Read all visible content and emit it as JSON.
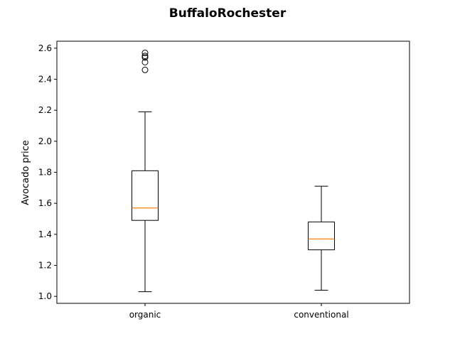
{
  "chart_data": {
    "type": "box",
    "title": "BuffaloRochester",
    "xlabel": "",
    "ylabel": "Avocado price",
    "ylim": [
      0.955,
      2.645
    ],
    "yticks": [
      "1.0",
      "1.2",
      "1.4",
      "1.6",
      "1.8",
      "2.0",
      "2.2",
      "2.4",
      "2.6"
    ],
    "grid": false,
    "legend": "none",
    "categories": [
      "organic",
      "conventional"
    ],
    "boxes": [
      {
        "category": "organic",
        "whisker_low": 1.03,
        "q1": 1.49,
        "median": 1.57,
        "q3": 1.81,
        "whisker_high": 2.19,
        "outliers": [
          2.46,
          2.51,
          2.54,
          2.55,
          2.57
        ]
      },
      {
        "category": "conventional",
        "whisker_low": 1.04,
        "q1": 1.3,
        "median": 1.37,
        "q3": 1.48,
        "whisker_high": 1.71,
        "outliers": []
      }
    ],
    "colors": {
      "box": "#000000",
      "median": "#ff7f0e",
      "outlier": "#000000"
    }
  }
}
